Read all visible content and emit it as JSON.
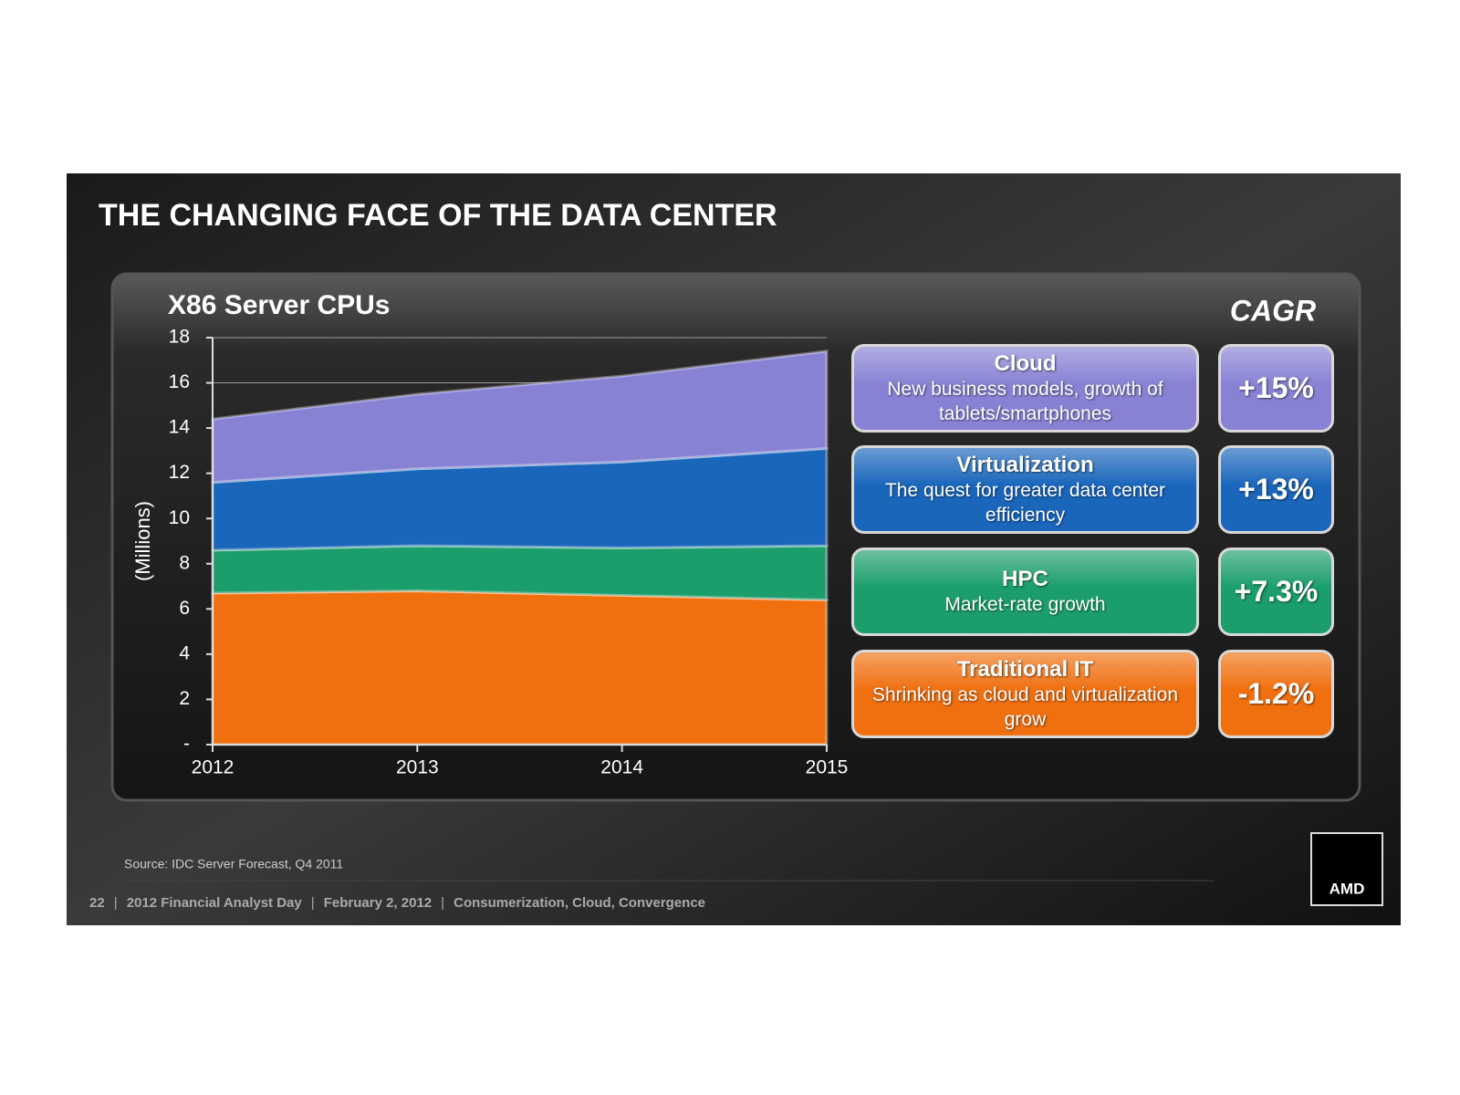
{
  "title": "THE CHANGING FACE OF THE DATA CENTER",
  "chart_data": {
    "type": "stacked_area",
    "title": "X86 Server CPUs",
    "y_label": "(Millions)",
    "categories": [
      "2012",
      "2013",
      "2014",
      "2015"
    ],
    "ylim": [
      0,
      18
    ],
    "yticks": [
      {
        "value": 0,
        "label": "-"
      },
      2,
      4,
      6,
      8,
      10,
      12,
      14,
      16,
      18
    ],
    "legend_header": "CAGR",
    "series": [
      {
        "name": "Traditional IT",
        "description": "Shrinking as cloud and virtualization grow",
        "cagr": "-1.2%",
        "color": "#f07010",
        "values": [
          6.7,
          6.8,
          6.6,
          6.4
        ]
      },
      {
        "name": "HPC",
        "description": "Market-rate growth",
        "cagr": "+7.3%",
        "color": "#1c9e6c",
        "values": [
          1.9,
          2.0,
          2.1,
          2.4
        ]
      },
      {
        "name": "Virtualization",
        "description": "The quest for greater data center efficiency",
        "cagr": "+13%",
        "color": "#1a66bb",
        "values": [
          3.0,
          3.4,
          3.8,
          4.3
        ]
      },
      {
        "name": "Cloud",
        "description": "New business models, growth of tablets/smartphones",
        "cagr": "+15%",
        "color": "#8882d4",
        "values": [
          2.8,
          3.3,
          3.8,
          4.3
        ]
      }
    ]
  },
  "source": "Source: IDC Server Forecast, Q4 2011",
  "footer": [
    "22",
    "2012 Financial Analyst Day",
    "February 2, 2012",
    "Consumerization, Cloud, Convergence"
  ],
  "logo": "AMD"
}
